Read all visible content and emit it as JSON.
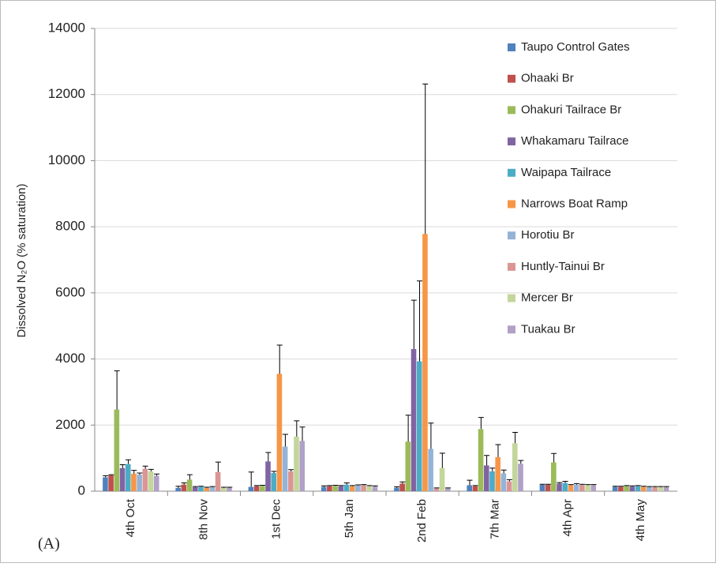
{
  "chart_data": {
    "type": "bar",
    "ylabel": "Dissolved N₂O (% saturation)",
    "annotation": "(A)",
    "categories": [
      "4th Oct",
      "8th Nov",
      "1st Dec",
      "5th Jan",
      "2nd Feb",
      "7th Mar",
      "4th Apr",
      "4th May"
    ],
    "ylim": [
      0,
      14000
    ],
    "yticks": [
      0,
      2000,
      4000,
      6000,
      8000,
      10000,
      12000,
      14000
    ],
    "grid": true,
    "legend": "upper right",
    "series": [
      {
        "name": "Taupo Control Gates",
        "color": "#4F81BD",
        "values": [
          420,
          100,
          130,
          130,
          100,
          180,
          190,
          130
        ],
        "errors": [
          50,
          50,
          450,
          30,
          30,
          150,
          20,
          20
        ]
      },
      {
        "name": "Ohaaki Br",
        "color": "#C0504D",
        "values": [
          480,
          200,
          150,
          150,
          230,
          150,
          190,
          130
        ],
        "errors": [
          20,
          50,
          20,
          20,
          50,
          20,
          20,
          20
        ]
      },
      {
        "name": "Ohakuri Tailrace Br",
        "color": "#9BBB59",
        "values": [
          2470,
          350,
          160,
          160,
          1500,
          1880,
          870,
          150
        ],
        "errors": [
          1170,
          150,
          20,
          20,
          800,
          350,
          270,
          20
        ]
      },
      {
        "name": "Whakamaru Tailrace",
        "color": "#8064A2",
        "values": [
          700,
          120,
          900,
          150,
          4300,
          780,
          230,
          140
        ],
        "errors": [
          100,
          20,
          270,
          20,
          1480,
          300,
          30,
          20
        ]
      },
      {
        "name": "Waipapa Tailrace",
        "color": "#4BACC6",
        "values": [
          820,
          130,
          550,
          200,
          3930,
          600,
          250,
          150
        ],
        "errors": [
          130,
          20,
          50,
          50,
          2430,
          100,
          50,
          20
        ]
      },
      {
        "name": "Narrows Boat Ramp",
        "color": "#F79646",
        "values": [
          530,
          100,
          3550,
          150,
          7780,
          1030,
          180,
          130
        ],
        "errors": [
          100,
          20,
          870,
          20,
          4540,
          380,
          20,
          20
        ]
      },
      {
        "name": "Horotiu Br",
        "color": "#95B3D7",
        "values": [
          500,
          120,
          1350,
          170,
          1280,
          540,
          200,
          120
        ],
        "errors": [
          50,
          20,
          370,
          20,
          780,
          100,
          30,
          20
        ]
      },
      {
        "name": "Huntly-Tainui Br",
        "color": "#DA9694",
        "values": [
          680,
          580,
          600,
          180,
          80,
          300,
          190,
          120
        ],
        "errors": [
          80,
          300,
          50,
          20,
          20,
          50,
          20,
          20
        ]
      },
      {
        "name": "Mercer Br",
        "color": "#C3D69B",
        "values": [
          600,
          100,
          1650,
          150,
          700,
          1450,
          180,
          120
        ],
        "errors": [
          60,
          20,
          480,
          20,
          450,
          330,
          20,
          20
        ]
      },
      {
        "name": "Tuakau Br",
        "color": "#B1A0C7",
        "values": [
          470,
          100,
          1520,
          140,
          80,
          830,
          180,
          120
        ],
        "errors": [
          50,
          20,
          420,
          20,
          20,
          100,
          20,
          20
        ]
      }
    ]
  }
}
